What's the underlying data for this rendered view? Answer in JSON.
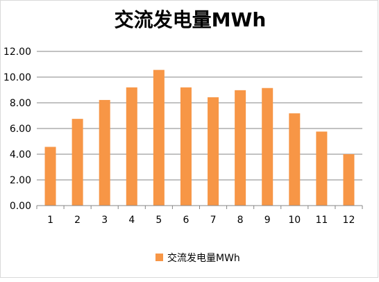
{
  "chart_data": {
    "type": "bar",
    "title": "交流发电量MWh",
    "categories": [
      "1",
      "2",
      "3",
      "4",
      "5",
      "6",
      "7",
      "8",
      "9",
      "10",
      "11",
      "12"
    ],
    "series": [
      {
        "name": "交流发电量MWh",
        "values": [
          4.57,
          6.75,
          8.22,
          9.2,
          10.56,
          9.2,
          8.43,
          8.98,
          9.15,
          7.18,
          5.76,
          4.0
        ]
      }
    ],
    "y_ticks": [
      "0.00",
      "2.00",
      "4.00",
      "6.00",
      "8.00",
      "10.00",
      "12.00"
    ],
    "ylim": [
      0,
      12
    ],
    "grid": true,
    "legend_position": "bottom",
    "colors": {
      "bar": "#F79646",
      "gridline": "#868686",
      "axis": "#868686",
      "text": "#000000"
    }
  }
}
